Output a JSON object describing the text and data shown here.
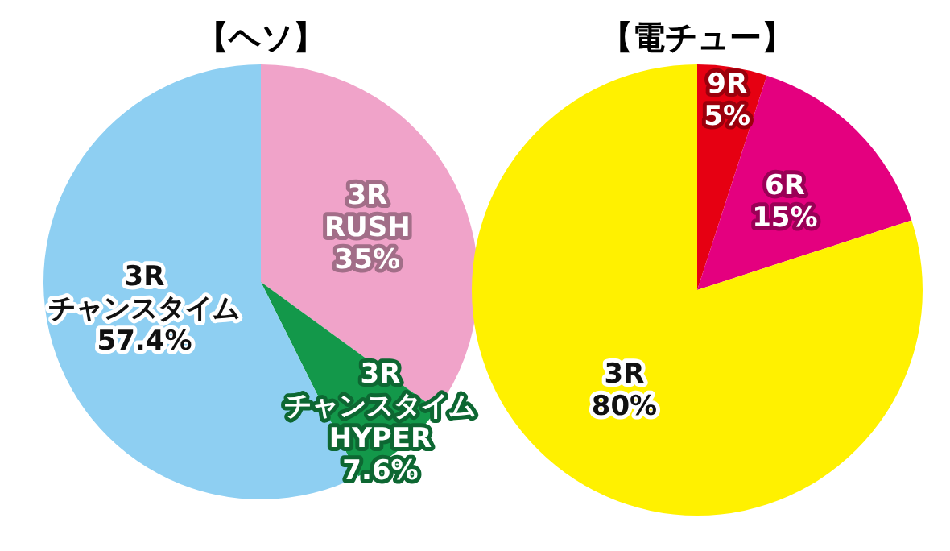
{
  "chart_data": [
    {
      "type": "pie",
      "title": "【ヘソ】",
      "categories": [
        "3R\nRUSH",
        "3R\nチャンスタイム\nHYPER",
        "3R\nチャンスタイム"
      ],
      "values": [
        35,
        7.6,
        57.4
      ],
      "value_labels": [
        "35%",
        "7.6%",
        "57.4%"
      ],
      "colors": [
        "#f0a3c9",
        "#13984a",
        "#8ecff2"
      ]
    },
    {
      "type": "pie",
      "title": "【電チュー】",
      "categories": [
        "9R",
        "6R",
        "3R"
      ],
      "values": [
        5,
        15,
        80
      ],
      "value_labels": [
        "5%",
        "15%",
        "80%"
      ],
      "colors": [
        "#e60012",
        "#e4007f",
        "#fff100"
      ]
    }
  ]
}
